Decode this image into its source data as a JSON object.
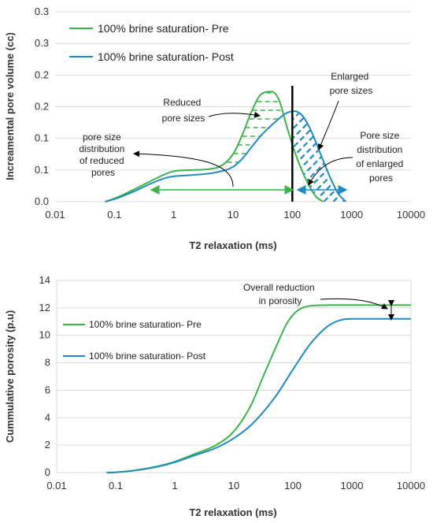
{
  "colors": {
    "pre": "#3cb44b",
    "post": "#1f8ac0",
    "annotation": "#000000"
  },
  "chart_data": [
    {
      "type": "line",
      "title": "",
      "xlabel": "T2 relaxation (ms)",
      "ylabel": "Increamental pore volume (cc)",
      "x_scale": "log",
      "xlim": [
        0.01,
        10000
      ],
      "ylim": [
        0,
        0.3
      ],
      "x_ticks": [
        "0.01",
        "0.1",
        "1",
        "10",
        "100",
        "1000",
        "10000"
      ],
      "y_ticks": [
        "0.0",
        "0.1",
        "0.1",
        "0.2",
        "0.2",
        "0.3",
        "0.3"
      ],
      "grid": "horizontal",
      "legend_position": "top-left",
      "series": [
        {
          "name": "100% brine saturation- Pre",
          "color": "#3cb44b",
          "points": [
            [
              0.07,
              0.0
            ],
            [
              0.1,
              0.005
            ],
            [
              0.2,
              0.018
            ],
            [
              0.4,
              0.032
            ],
            [
              0.7,
              0.043
            ],
            [
              1,
              0.048
            ],
            [
              2,
              0.05
            ],
            [
              5,
              0.053
            ],
            [
              10,
              0.075
            ],
            [
              15,
              0.11
            ],
            [
              20,
              0.14
            ],
            [
              30,
              0.17
            ],
            [
              45,
              0.174
            ],
            [
              60,
              0.16
            ],
            [
              80,
              0.12
            ],
            [
              100,
              0.09
            ],
            [
              130,
              0.06
            ],
            [
              180,
              0.03
            ],
            [
              250,
              0.008
            ],
            [
              330,
              0.0
            ]
          ]
        },
        {
          "name": "100% brine saturation- Post",
          "color": "#1f8ac0",
          "points": [
            [
              0.07,
              0.0
            ],
            [
              0.1,
              0.004
            ],
            [
              0.2,
              0.015
            ],
            [
              0.4,
              0.028
            ],
            [
              0.7,
              0.037
            ],
            [
              1,
              0.04
            ],
            [
              2,
              0.042
            ],
            [
              5,
              0.046
            ],
            [
              10,
              0.055
            ],
            [
              15,
              0.07
            ],
            [
              20,
              0.085
            ],
            [
              30,
              0.105
            ],
            [
              50,
              0.125
            ],
            [
              80,
              0.14
            ],
            [
              110,
              0.143
            ],
            [
              150,
              0.135
            ],
            [
              200,
              0.115
            ],
            [
              300,
              0.075
            ],
            [
              450,
              0.035
            ],
            [
              600,
              0.012
            ],
            [
              800,
              0.0
            ]
          ]
        }
      ],
      "vertical_line_x": 100,
      "annotations": [
        {
          "lines": [
            "Reduced",
            "pore sizes"
          ]
        },
        {
          "lines": [
            "Enlarged",
            "pore sizes"
          ]
        },
        {
          "lines": [
            "pore size",
            "distribution",
            "of reduced",
            "pores"
          ]
        },
        {
          "lines": [
            "Pore size",
            "distribution",
            "of enlarged",
            "pores"
          ]
        }
      ]
    },
    {
      "type": "line",
      "title": "",
      "xlabel": "T2 relaxation (ms)",
      "ylabel": "Cummulative porosity (p.u)",
      "x_scale": "log",
      "xlim": [
        0.01,
        10000
      ],
      "ylim": [
        0,
        14
      ],
      "x_ticks": [
        "0.01",
        "0.1",
        "1",
        "10",
        "100",
        "1000",
        "10000"
      ],
      "y_ticks": [
        "0",
        "2",
        "4",
        "6",
        "8",
        "10",
        "12",
        "14"
      ],
      "grid": "horizontal",
      "legend_position": "left",
      "series": [
        {
          "name": "100% brine saturation- Pre",
          "color": "#3cb44b",
          "points": [
            [
              0.07,
              0.0
            ],
            [
              0.1,
              0.02
            ],
            [
              0.2,
              0.15
            ],
            [
              0.5,
              0.45
            ],
            [
              1,
              0.8
            ],
            [
              2,
              1.3
            ],
            [
              5,
              2.0
            ],
            [
              10,
              3.0
            ],
            [
              20,
              5.0
            ],
            [
              30,
              6.8
            ],
            [
              50,
              9.0
            ],
            [
              80,
              10.9
            ],
            [
              120,
              11.8
            ],
            [
              200,
              12.15
            ],
            [
              400,
              12.2
            ],
            [
              10000,
              12.2
            ]
          ]
        },
        {
          "name": "100% brine saturation- Post",
          "color": "#1f8ac0",
          "points": [
            [
              0.07,
              0.0
            ],
            [
              0.1,
              0.02
            ],
            [
              0.2,
              0.14
            ],
            [
              0.5,
              0.42
            ],
            [
              1,
              0.75
            ],
            [
              2,
              1.2
            ],
            [
              5,
              1.8
            ],
            [
              10,
              2.5
            ],
            [
              20,
              3.5
            ],
            [
              50,
              5.5
            ],
            [
              100,
              7.5
            ],
            [
              200,
              9.4
            ],
            [
              400,
              10.7
            ],
            [
              700,
              11.15
            ],
            [
              1000,
              11.2
            ],
            [
              10000,
              11.2
            ]
          ]
        }
      ],
      "annotations": [
        {
          "lines": [
            "Overall reduction",
            "in porosity"
          ]
        }
      ]
    }
  ]
}
